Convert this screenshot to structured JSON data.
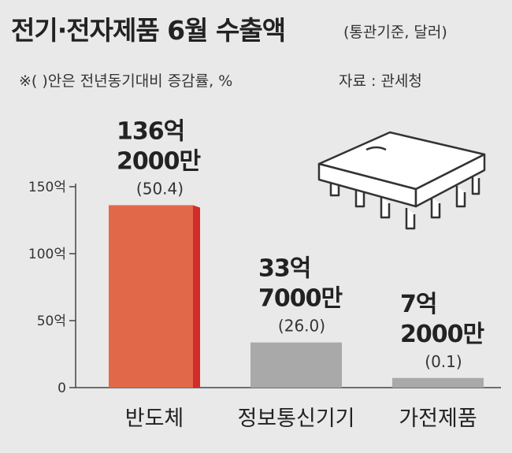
{
  "header": {
    "title": "전기·전자제품 6월 수출액",
    "title_note": "(통관기준, 달러)",
    "subtitle": "※( )안은 전년동기대비 증감률, %",
    "source": "자료 : 관세청"
  },
  "chart_data": {
    "type": "bar",
    "categories": [
      "반도체",
      "정보통신기기",
      "가전제품"
    ],
    "values": [
      136.2,
      33.7,
      7.2
    ],
    "value_labels": [
      [
        "136억",
        "2000만"
      ],
      [
        "33억",
        "7000만"
      ],
      [
        "7억",
        "2000만"
      ]
    ],
    "change_labels": [
      "(50.4)",
      "(26.0)",
      "(0.1)"
    ],
    "y_ticks": [
      0,
      50,
      100,
      150
    ],
    "y_tick_labels": [
      "0",
      "50억",
      "100억",
      "150억"
    ],
    "ylim": [
      0,
      150
    ],
    "grid": false,
    "colors": {
      "highlight": "#e2684a",
      "highlight_side": "#d42b2b",
      "normal": "#a9a9a9",
      "background": "#e9e9e9"
    },
    "illustration": "microchip-icon"
  }
}
